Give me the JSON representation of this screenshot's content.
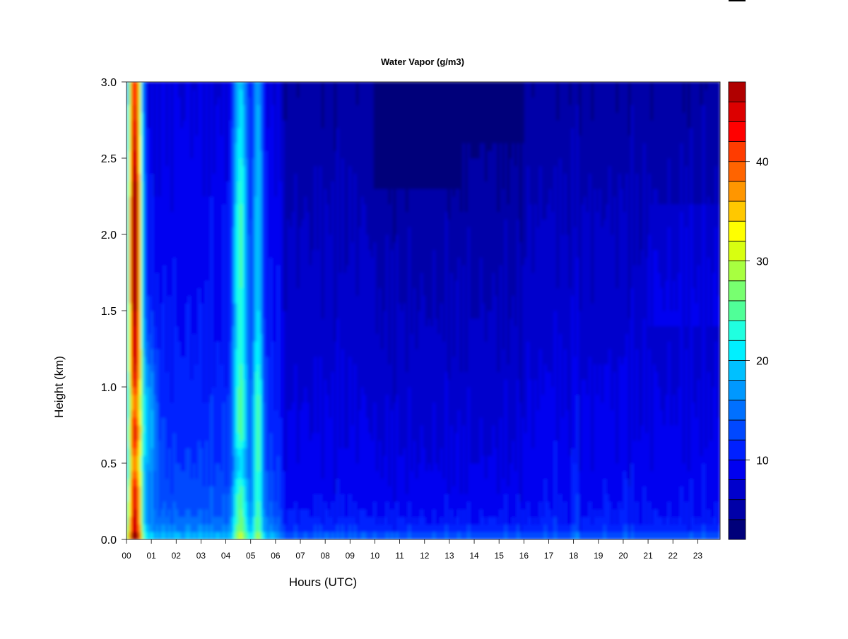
{
  "chart_data": {
    "type": "heatmap",
    "title": "Water Vapor (g/m3)",
    "xlabel": "Hours (UTC)",
    "ylabel": "Height (km)",
    "xlim": [
      0,
      23.9
    ],
    "ylim": [
      0,
      3.0
    ],
    "x_tick_labels": [
      "00",
      "01",
      "02",
      "03",
      "04",
      "05",
      "06",
      "07",
      "08",
      "09",
      "10",
      "11",
      "12",
      "13",
      "14",
      "15",
      "16",
      "17",
      "18",
      "19",
      "20",
      "21",
      "22",
      "23"
    ],
    "y_tick_values": [
      0.0,
      0.5,
      1.0,
      1.5,
      2.0,
      2.5,
      3.0
    ],
    "y_tick_labels": [
      "0.0",
      "0.5",
      "1.0",
      "1.5",
      "2.0",
      "2.5",
      "3.0"
    ],
    "grid": false,
    "colorbar": {
      "min": 2,
      "max": 48,
      "levels": [
        2,
        4,
        6,
        8,
        10,
        12,
        14,
        16,
        18,
        20,
        22,
        24,
        26,
        28,
        30,
        32,
        34,
        36,
        38,
        40,
        42,
        44,
        46,
        48
      ],
      "tick_values": [
        10,
        20,
        30,
        40
      ],
      "tick_labels": [
        "10",
        "20",
        "30",
        "40"
      ],
      "colors": [
        "#00007a",
        "#0000a8",
        "#0000cc",
        "#0000f0",
        "#0020ff",
        "#0048ff",
        "#0070ff",
        "#0098ff",
        "#00c0ff",
        "#00f0ff",
        "#20ffe0",
        "#50ff98",
        "#78ff70",
        "#a8ff40",
        "#d8ff10",
        "#ffff00",
        "#ffc800",
        "#ff9600",
        "#ff6400",
        "#ff3c00",
        "#ff0000",
        "#dc0000",
        "#b00000",
        "#800000"
      ]
    },
    "features": [
      {
        "hour_range": [
          0.0,
          0.75
        ],
        "height_range": [
          0.0,
          3.0
        ],
        "max_value": 48
      },
      {
        "hour_range": [
          4.2,
          5.0
        ],
        "height_range": [
          0.0,
          3.0
        ],
        "max_value": 26
      },
      {
        "hour_range": [
          5.0,
          5.55
        ],
        "height_range": [
          0.0,
          3.0
        ],
        "max_value": 24
      },
      {
        "hour_range": [
          10.0,
          13.5
        ],
        "height_range": [
          2.3,
          3.0
        ],
        "max_value": 4
      }
    ]
  }
}
